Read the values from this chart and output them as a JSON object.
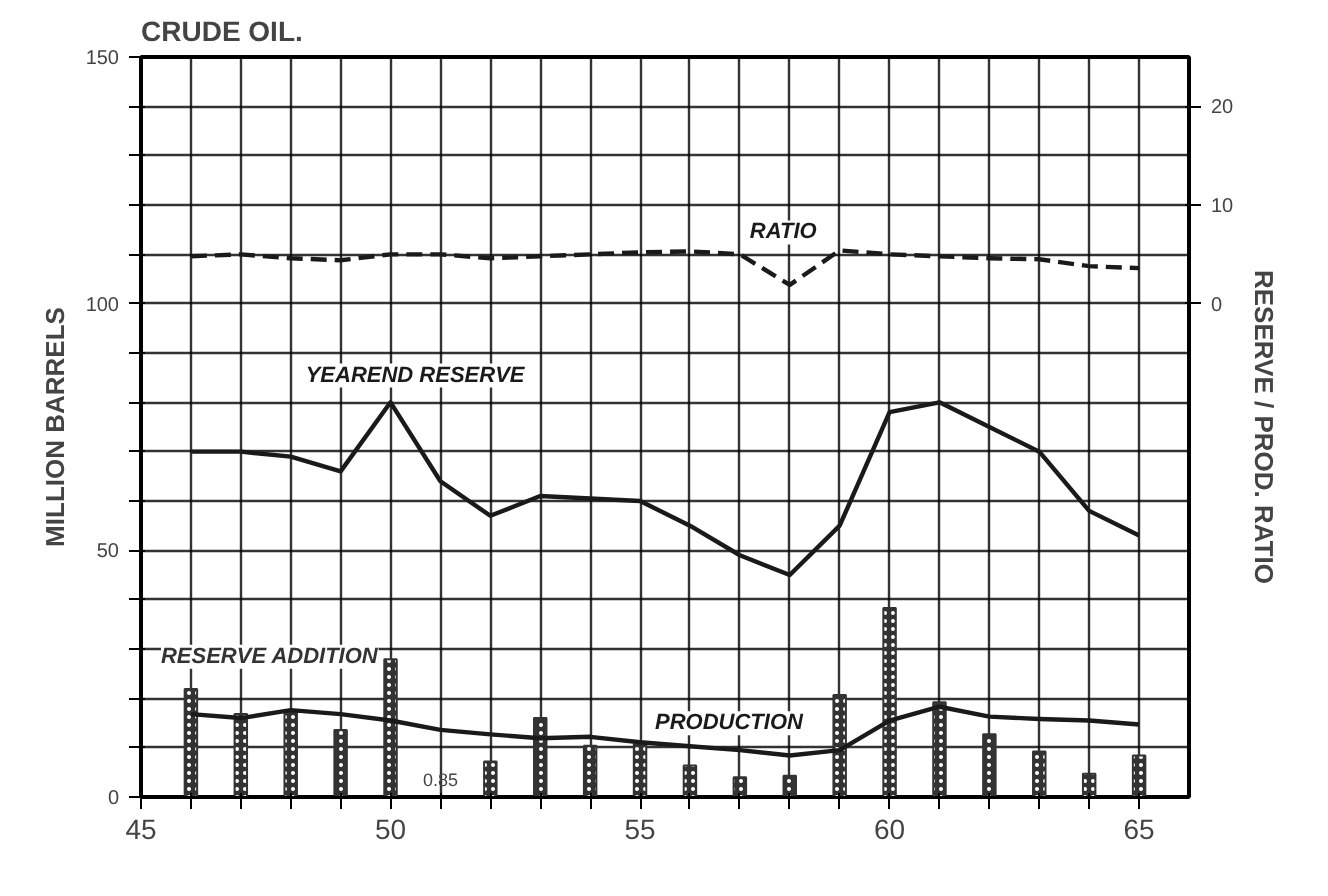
{
  "chart_data": {
    "type": "line",
    "title": "CRUDE OIL.",
    "ylabel": "MILLION BARRELS",
    "y2label": "RESERVE / PROD. RATIO",
    "x": [
      46,
      47,
      48,
      49,
      50,
      51,
      52,
      53,
      54,
      55,
      56,
      57,
      58,
      59,
      60,
      61,
      62,
      63,
      64,
      65
    ],
    "series": [
      {
        "name": "RESERVE ADDITION",
        "type": "bar",
        "color": "#333333",
        "values": [
          21.9,
          16.8,
          17.6,
          13.6,
          27.9,
          null,
          7.2,
          16,
          10.4,
          10.7,
          6.4,
          4,
          4.3,
          20.7,
          38.3,
          19.2,
          12.7,
          9.2,
          4.7,
          8.4
        ]
      },
      {
        "name": "PRODUCTION",
        "color": "#1a1a1a",
        "line_style": "solid",
        "values": [
          16.8,
          16,
          17.6,
          16.8,
          15.5,
          13.6,
          12.7,
          11.9,
          12.2,
          11.1,
          10.3,
          9.5,
          8.4,
          9.5,
          15.5,
          18.3,
          16.3,
          15.8,
          15.5,
          14.7
        ]
      },
      {
        "name": "YEAREND RESERVE",
        "color": "#1a1a1a",
        "line_style": "solid",
        "values": [
          70,
          70,
          69,
          66,
          80,
          64,
          57,
          61,
          60.5,
          60,
          55,
          49,
          45,
          55,
          78,
          80,
          75,
          70,
          58,
          53
        ]
      },
      {
        "name": "RATIO",
        "axis": "y2",
        "color": "#1a1a1a",
        "line_style": "dashed",
        "values": [
          4.8,
          5,
          4.6,
          4.4,
          5,
          5,
          4.6,
          4.8,
          5,
          5.2,
          5.3,
          5,
          1.9,
          5.4,
          5,
          4.8,
          4.6,
          4.5,
          3.8,
          3.6
        ]
      }
    ],
    "annotations": [
      "0.85"
    ],
    "xlim": [
      45,
      66
    ],
    "xticks": [
      45,
      {
        "value": 46,
        "label": null
      },
      {
        "value": 47,
        "label": null
      },
      {
        "value": 48,
        "label": null
      },
      {
        "value": 49,
        "label": null
      },
      50,
      {
        "value": 51,
        "label": null
      },
      {
        "value": 52,
        "label": null
      },
      {
        "value": 53,
        "label": null
      },
      {
        "value": 54,
        "label": null
      },
      55,
      {
        "value": 56,
        "label": null
      },
      {
        "value": 57,
        "label": null
      },
      {
        "value": 58,
        "label": null
      },
      {
        "value": 59,
        "label": null
      },
      60,
      {
        "value": 61,
        "label": null
      },
      {
        "value": 62,
        "label": null
      },
      {
        "value": 63,
        "label": null
      },
      {
        "value": 64,
        "label": null
      },
      65
    ],
    "ylim": [
      0,
      150
    ],
    "yticks": [
      0,
      {
        "value": 10,
        "label": null
      },
      {
        "value": 20,
        "label": null
      },
      {
        "value": 30,
        "label": null
      },
      {
        "value": 40,
        "label": null
      },
      50,
      {
        "value": 60,
        "label": null
      },
      {
        "value": 70,
        "label": null
      },
      {
        "value": 80,
        "label": null
      },
      {
        "value": 90,
        "label": null
      },
      100,
      {
        "value": 110,
        "label": null
      },
      {
        "value": 120,
        "label": null
      },
      {
        "value": 130,
        "label": null
      },
      {
        "value": 140,
        "label": null
      },
      150
    ],
    "y2lim": [
      -50,
      25
    ],
    "y2ticks": [
      0,
      10,
      20
    ],
    "grid": true
  }
}
